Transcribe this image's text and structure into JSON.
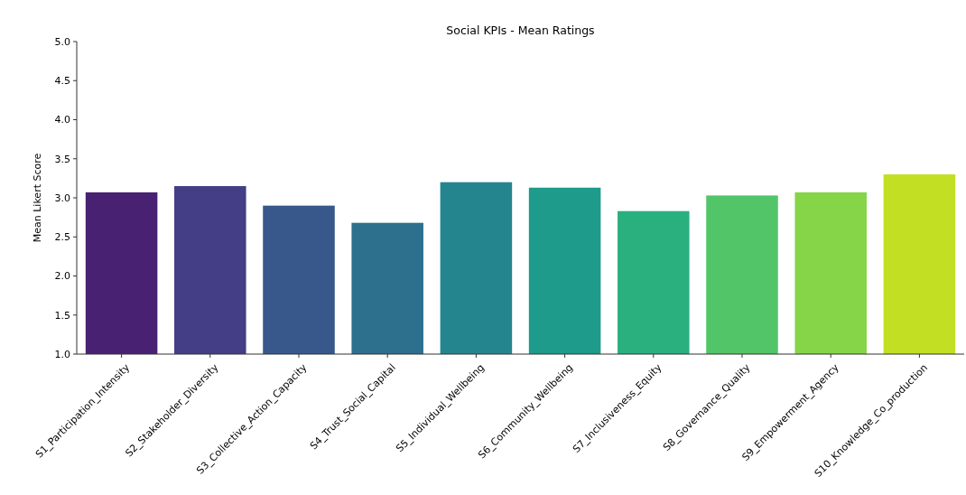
{
  "chart_data": {
    "type": "bar",
    "title": "Social KPIs - Mean Ratings",
    "ylabel": "Mean Likert Score",
    "categories": [
      "S1_Participation_Intensity",
      "S2_Stakeholder_Diversity",
      "S3_Collective_Action_Capacity",
      "S4_Trust_Social_Capital",
      "S5_Individual_Wellbeing",
      "S6_Community_Wellbeing",
      "S7_Inclusiveness_Equity",
      "S8_Governance_Quality",
      "S9_Empowerment_Agency",
      "S10_Knowledge_Co_production"
    ],
    "values": [
      3.07,
      3.15,
      2.9,
      2.68,
      3.2,
      3.13,
      2.83,
      3.03,
      3.07,
      3.3
    ],
    "colors": [
      "#482173",
      "#433e85",
      "#38588c",
      "#2d708e",
      "#25858e",
      "#1e9b8a",
      "#2ab07f",
      "#52c569",
      "#86d549",
      "#c2df23"
    ],
    "ylim": [
      1.0,
      5.0
    ],
    "yticks": [
      {
        "value": 1,
        "label": "1.0"
      },
      {
        "value": 1.5,
        "label": "1.5"
      },
      {
        "value": 2,
        "label": "2.0"
      },
      {
        "value": 2.5,
        "label": "2.5"
      },
      {
        "value": 3,
        "label": "3.0"
      },
      {
        "value": 3.5,
        "label": "3.5"
      },
      {
        "value": 4,
        "label": "4.0"
      },
      {
        "value": 4.5,
        "label": "4.5"
      },
      {
        "value": 5,
        "label": "5.0"
      }
    ]
  }
}
